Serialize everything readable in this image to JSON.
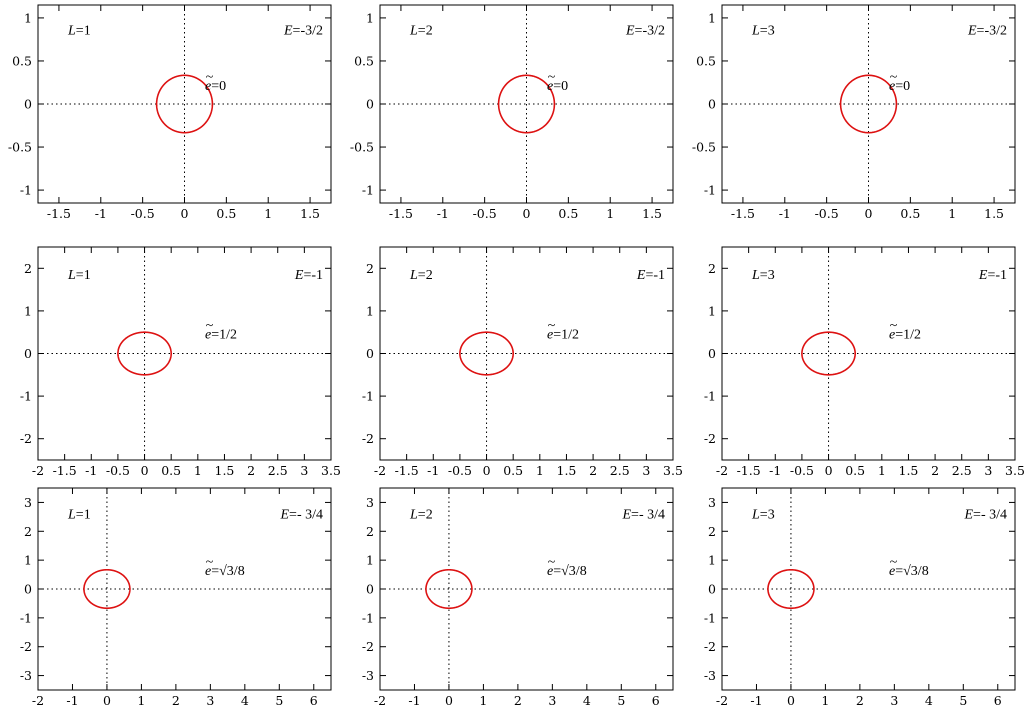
{
  "colors": {
    "curve": "#dd1111",
    "axes": "#000000"
  },
  "chart_data": [
    {
      "type": "line",
      "row": 0,
      "col": 0,
      "L": 1,
      "E": -1.5,
      "labels": {
        "L": "L",
        "L_val": "=1",
        "E": "E",
        "E_val": "=-3/2",
        "e": "e",
        "e_val": "=0"
      },
      "xlim": [
        -1.75,
        1.75
      ],
      "ylim": [
        -1.15,
        1.15
      ],
      "xticks": [
        -1.5,
        -1,
        -0.5,
        0,
        0.5,
        1,
        1.5
      ],
      "xtick_labels": [
        "-1.5",
        "-1",
        "-0.5",
        "0",
        "0.5",
        "1",
        "1.5"
      ],
      "yticks": [
        -1,
        -0.5,
        0,
        0.5,
        1
      ],
      "ytick_labels": [
        "-1",
        "-0.5",
        "0",
        "0.5",
        "1"
      ],
      "grid": false
    },
    {
      "type": "line",
      "row": 0,
      "col": 1,
      "L": 2,
      "E": -1.5,
      "labels": {
        "L": "L",
        "L_val": "=2",
        "E": "E",
        "E_val": "=-3/2",
        "e": "e",
        "e_val": "=0"
      },
      "xlim": [
        -1.75,
        1.75
      ],
      "ylim": [
        -1.15,
        1.15
      ],
      "xticks": [
        -1.5,
        -1,
        -0.5,
        0,
        0.5,
        1,
        1.5
      ],
      "xtick_labels": [
        "-1.5",
        "-1",
        "-0.5",
        "0",
        "0.5",
        "1",
        "1.5"
      ],
      "yticks": [
        -1,
        -0.5,
        0,
        0.5,
        1
      ],
      "ytick_labels": [
        "-1",
        "-0.5",
        "0",
        "0.5",
        "1"
      ],
      "grid": false
    },
    {
      "type": "line",
      "row": 0,
      "col": 2,
      "L": 3,
      "E": -1.5,
      "labels": {
        "L": "L",
        "L_val": "=3",
        "E": "E",
        "E_val": "=-3/2",
        "e": "e",
        "e_val": "=0"
      },
      "xlim": [
        -1.75,
        1.75
      ],
      "ylim": [
        -1.15,
        1.15
      ],
      "xticks": [
        -1.5,
        -1,
        -0.5,
        0,
        0.5,
        1,
        1.5
      ],
      "xtick_labels": [
        "-1.5",
        "-1",
        "-0.5",
        "0",
        "0.5",
        "1",
        "1.5"
      ],
      "yticks": [
        -1,
        -0.5,
        0,
        0.5,
        1
      ],
      "ytick_labels": [
        "-1",
        "-0.5",
        "0",
        "0.5",
        "1"
      ],
      "grid": false
    },
    {
      "type": "line",
      "row": 1,
      "col": 0,
      "L": 1,
      "E": -1,
      "labels": {
        "L": "L",
        "L_val": "=1",
        "E": "E",
        "E_val": "=-1",
        "e": "e",
        "e_val": "=1/2"
      },
      "xlim": [
        -2,
        3.5
      ],
      "ylim": [
        -2.5,
        2.5
      ],
      "xticks": [
        -2,
        -1.5,
        -1,
        -0.5,
        0,
        0.5,
        1,
        1.5,
        2,
        2.5,
        3,
        3.5
      ],
      "xtick_labels": [
        "-2",
        "-1.5",
        "-1",
        "-0.5",
        "0",
        "0.5",
        "1",
        "1.5",
        "2",
        "2.5",
        "3",
        "3.5"
      ],
      "yticks": [
        -2,
        -1,
        0,
        1,
        2
      ],
      "ytick_labels": [
        "-2",
        "-1",
        "0",
        "1",
        "2"
      ],
      "grid": false
    },
    {
      "type": "line",
      "row": 1,
      "col": 1,
      "L": 2,
      "E": -1,
      "labels": {
        "L": "L",
        "L_val": "=2",
        "E": "E",
        "E_val": "=-1",
        "e": "e",
        "e_val": "=1/2"
      },
      "xlim": [
        -2,
        3.5
      ],
      "ylim": [
        -2.5,
        2.5
      ],
      "xticks": [
        -2,
        -1.5,
        -1,
        -0.5,
        0,
        0.5,
        1,
        1.5,
        2,
        2.5,
        3,
        3.5
      ],
      "xtick_labels": [
        "-2",
        "-1.5",
        "-1",
        "-0.5",
        "0",
        "0.5",
        "1",
        "1.5",
        "2",
        "2.5",
        "3",
        "3.5"
      ],
      "yticks": [
        -2,
        -1,
        0,
        1,
        2
      ],
      "ytick_labels": [
        "-2",
        "-1",
        "0",
        "1",
        "2"
      ],
      "grid": false
    },
    {
      "type": "line",
      "row": 1,
      "col": 2,
      "L": 3,
      "E": -1,
      "labels": {
        "L": "L",
        "L_val": "=3",
        "E": "E",
        "E_val": "=-1",
        "e": "e",
        "e_val": "=1/2"
      },
      "xlim": [
        -2,
        3.5
      ],
      "ylim": [
        -2.5,
        2.5
      ],
      "xticks": [
        -2,
        -1.5,
        -1,
        -0.5,
        0,
        0.5,
        1,
        1.5,
        2,
        2.5,
        3,
        3.5
      ],
      "xtick_labels": [
        "-2",
        "-1.5",
        "-1",
        "-0.5",
        "0",
        "0.5",
        "1",
        "1.5",
        "2",
        "2.5",
        "3",
        "3.5"
      ],
      "yticks": [
        -2,
        -1,
        0,
        1,
        2
      ],
      "ytick_labels": [
        "-2",
        "-1",
        "0",
        "1",
        "2"
      ],
      "grid": false
    },
    {
      "type": "line",
      "row": 2,
      "col": 0,
      "L": 1,
      "E": -0.75,
      "labels": {
        "L": "L",
        "L_val": "=1",
        "E": "E",
        "E_val": "=- 3/4",
        "e": "e",
        "e_val": "=√3/8"
      },
      "xlim": [
        -2,
        6.5
      ],
      "ylim": [
        -3.5,
        3.5
      ],
      "xticks": [
        -2,
        -1,
        0,
        1,
        2,
        3,
        4,
        5,
        6
      ],
      "xtick_labels": [
        "-2",
        "-1",
        "0",
        "1",
        "2",
        "3",
        "4",
        "5",
        "6"
      ],
      "yticks": [
        -3,
        -2,
        -1,
        0,
        1,
        2,
        3
      ],
      "ytick_labels": [
        "-3",
        "-2",
        "-1",
        "0",
        "1",
        "2",
        "3"
      ],
      "grid": false
    },
    {
      "type": "line",
      "row": 2,
      "col": 1,
      "L": 2,
      "E": -0.75,
      "labels": {
        "L": "L",
        "L_val": "=2",
        "E": "E",
        "E_val": "=- 3/4",
        "e": "e",
        "e_val": "=√3/8"
      },
      "xlim": [
        -2,
        6.5
      ],
      "ylim": [
        -3.5,
        3.5
      ],
      "xticks": [
        -2,
        -1,
        0,
        1,
        2,
        3,
        4,
        5,
        6
      ],
      "xtick_labels": [
        "-2",
        "-1",
        "0",
        "1",
        "2",
        "3",
        "4",
        "5",
        "6"
      ],
      "yticks": [
        -3,
        -2,
        -1,
        0,
        1,
        2,
        3
      ],
      "ytick_labels": [
        "-3",
        "-2",
        "-1",
        "0",
        "1",
        "2",
        "3"
      ],
      "grid": false
    },
    {
      "type": "line",
      "row": 2,
      "col": 2,
      "L": 3,
      "E": -0.75,
      "labels": {
        "L": "L",
        "L_val": "=3",
        "E": "E",
        "E_val": "=- 3/4",
        "e": "e",
        "e_val": "=√3/8"
      },
      "xlim": [
        -2,
        6.5
      ],
      "ylim": [
        -3.5,
        3.5
      ],
      "xticks": [
        -2,
        -1,
        0,
        1,
        2,
        3,
        4,
        5,
        6
      ],
      "xtick_labels": [
        "-2",
        "-1",
        "0",
        "1",
        "2",
        "3",
        "4",
        "5",
        "6"
      ],
      "yticks": [
        -3,
        -2,
        -1,
        0,
        1,
        2,
        3
      ],
      "ytick_labels": [
        "-3",
        "-2",
        "-1",
        "0",
        "1",
        "2",
        "3"
      ],
      "grid": false
    }
  ]
}
